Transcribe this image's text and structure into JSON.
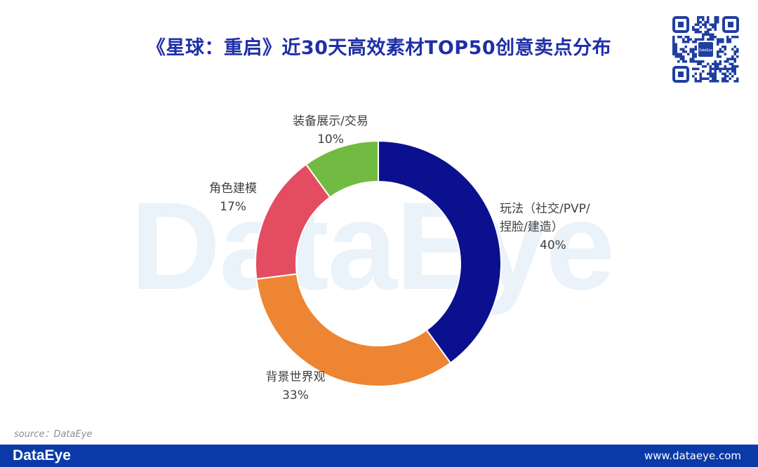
{
  "title": "《星球：重启》近30天高效素材TOP50创意卖点分布",
  "watermark": "DataEye",
  "qr_badge": "DataEye",
  "source": "source：DataEye",
  "footer": {
    "logo": "DataEye",
    "url": "www.dataeye.com"
  },
  "chart_data": {
    "type": "pie",
    "variant": "donut",
    "slices": [
      {
        "label_lines": [
          "玩法（社交/PVP/",
          "捏脸/建造）"
        ],
        "value": 40,
        "display": "40%",
        "color": "#0b108f"
      },
      {
        "label_lines": [
          "背景世界观"
        ],
        "value": 33,
        "display": "33%",
        "color": "#ed8533"
      },
      {
        "label_lines": [
          "角色建模"
        ],
        "value": 17,
        "display": "17%",
        "color": "#e44c61"
      },
      {
        "label_lines": [
          "装备展示/交易"
        ],
        "value": 10,
        "display": "10%",
        "color": "#72bb43"
      }
    ]
  }
}
